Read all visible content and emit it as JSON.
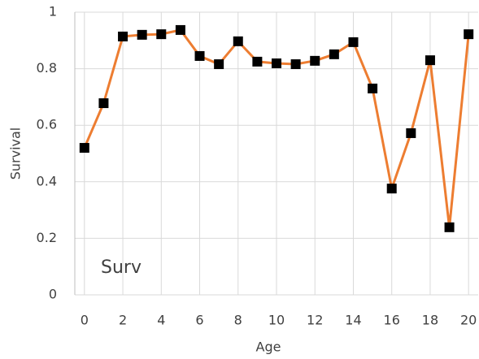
{
  "chart_data": {
    "type": "line",
    "xlabel": "Age",
    "ylabel": "Survival",
    "annotation": "Surv",
    "x": [
      0,
      1,
      2,
      3,
      4,
      5,
      6,
      7,
      8,
      9,
      10,
      11,
      12,
      13,
      14,
      15,
      16,
      17,
      18,
      19,
      20
    ],
    "series": [
      {
        "name": "Surv",
        "color": "#ed7d31",
        "marker_color": "#000000",
        "values": [
          0.52,
          0.678,
          0.914,
          0.92,
          0.922,
          0.937,
          0.845,
          0.816,
          0.897,
          0.825,
          0.819,
          0.816,
          0.828,
          0.851,
          0.894,
          0.73,
          0.376,
          0.572,
          0.83,
          0.239,
          0.922
        ]
      }
    ],
    "xlim": [
      -0.5,
      20.5
    ],
    "xticks": [
      0,
      2,
      4,
      6,
      8,
      10,
      12,
      14,
      16,
      18,
      20
    ],
    "ylim": [
      0,
      1
    ],
    "yticks": [
      0,
      0.2,
      0.4,
      0.6,
      0.8,
      1
    ],
    "grid": true
  }
}
